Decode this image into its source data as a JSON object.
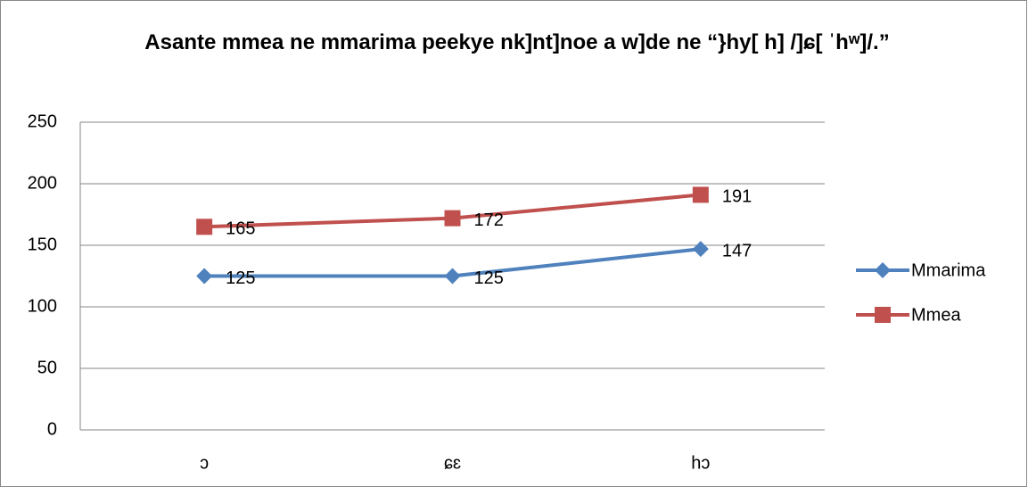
{
  "chart_data": {
    "type": "line",
    "title": "Asante mmea ne mmarima peekye nk]nt]noe a w]de ne “}hy[ h] /]ɕ[ ˈhʷ]/.”",
    "categories": [
      "ɔ",
      "ɕɛ",
      "hɔ"
    ],
    "series": [
      {
        "name": "Mmarima",
        "color": "#4f81bd",
        "marker": "diamond",
        "values": [
          125,
          125,
          147
        ]
      },
      {
        "name": "Mmea",
        "color": "#c0504d",
        "marker": "square",
        "values": [
          165,
          172,
          191
        ]
      }
    ],
    "ylim": [
      0,
      250
    ],
    "yticks": [
      0,
      50,
      100,
      150,
      200,
      250
    ],
    "grid": true,
    "legend": "right"
  }
}
